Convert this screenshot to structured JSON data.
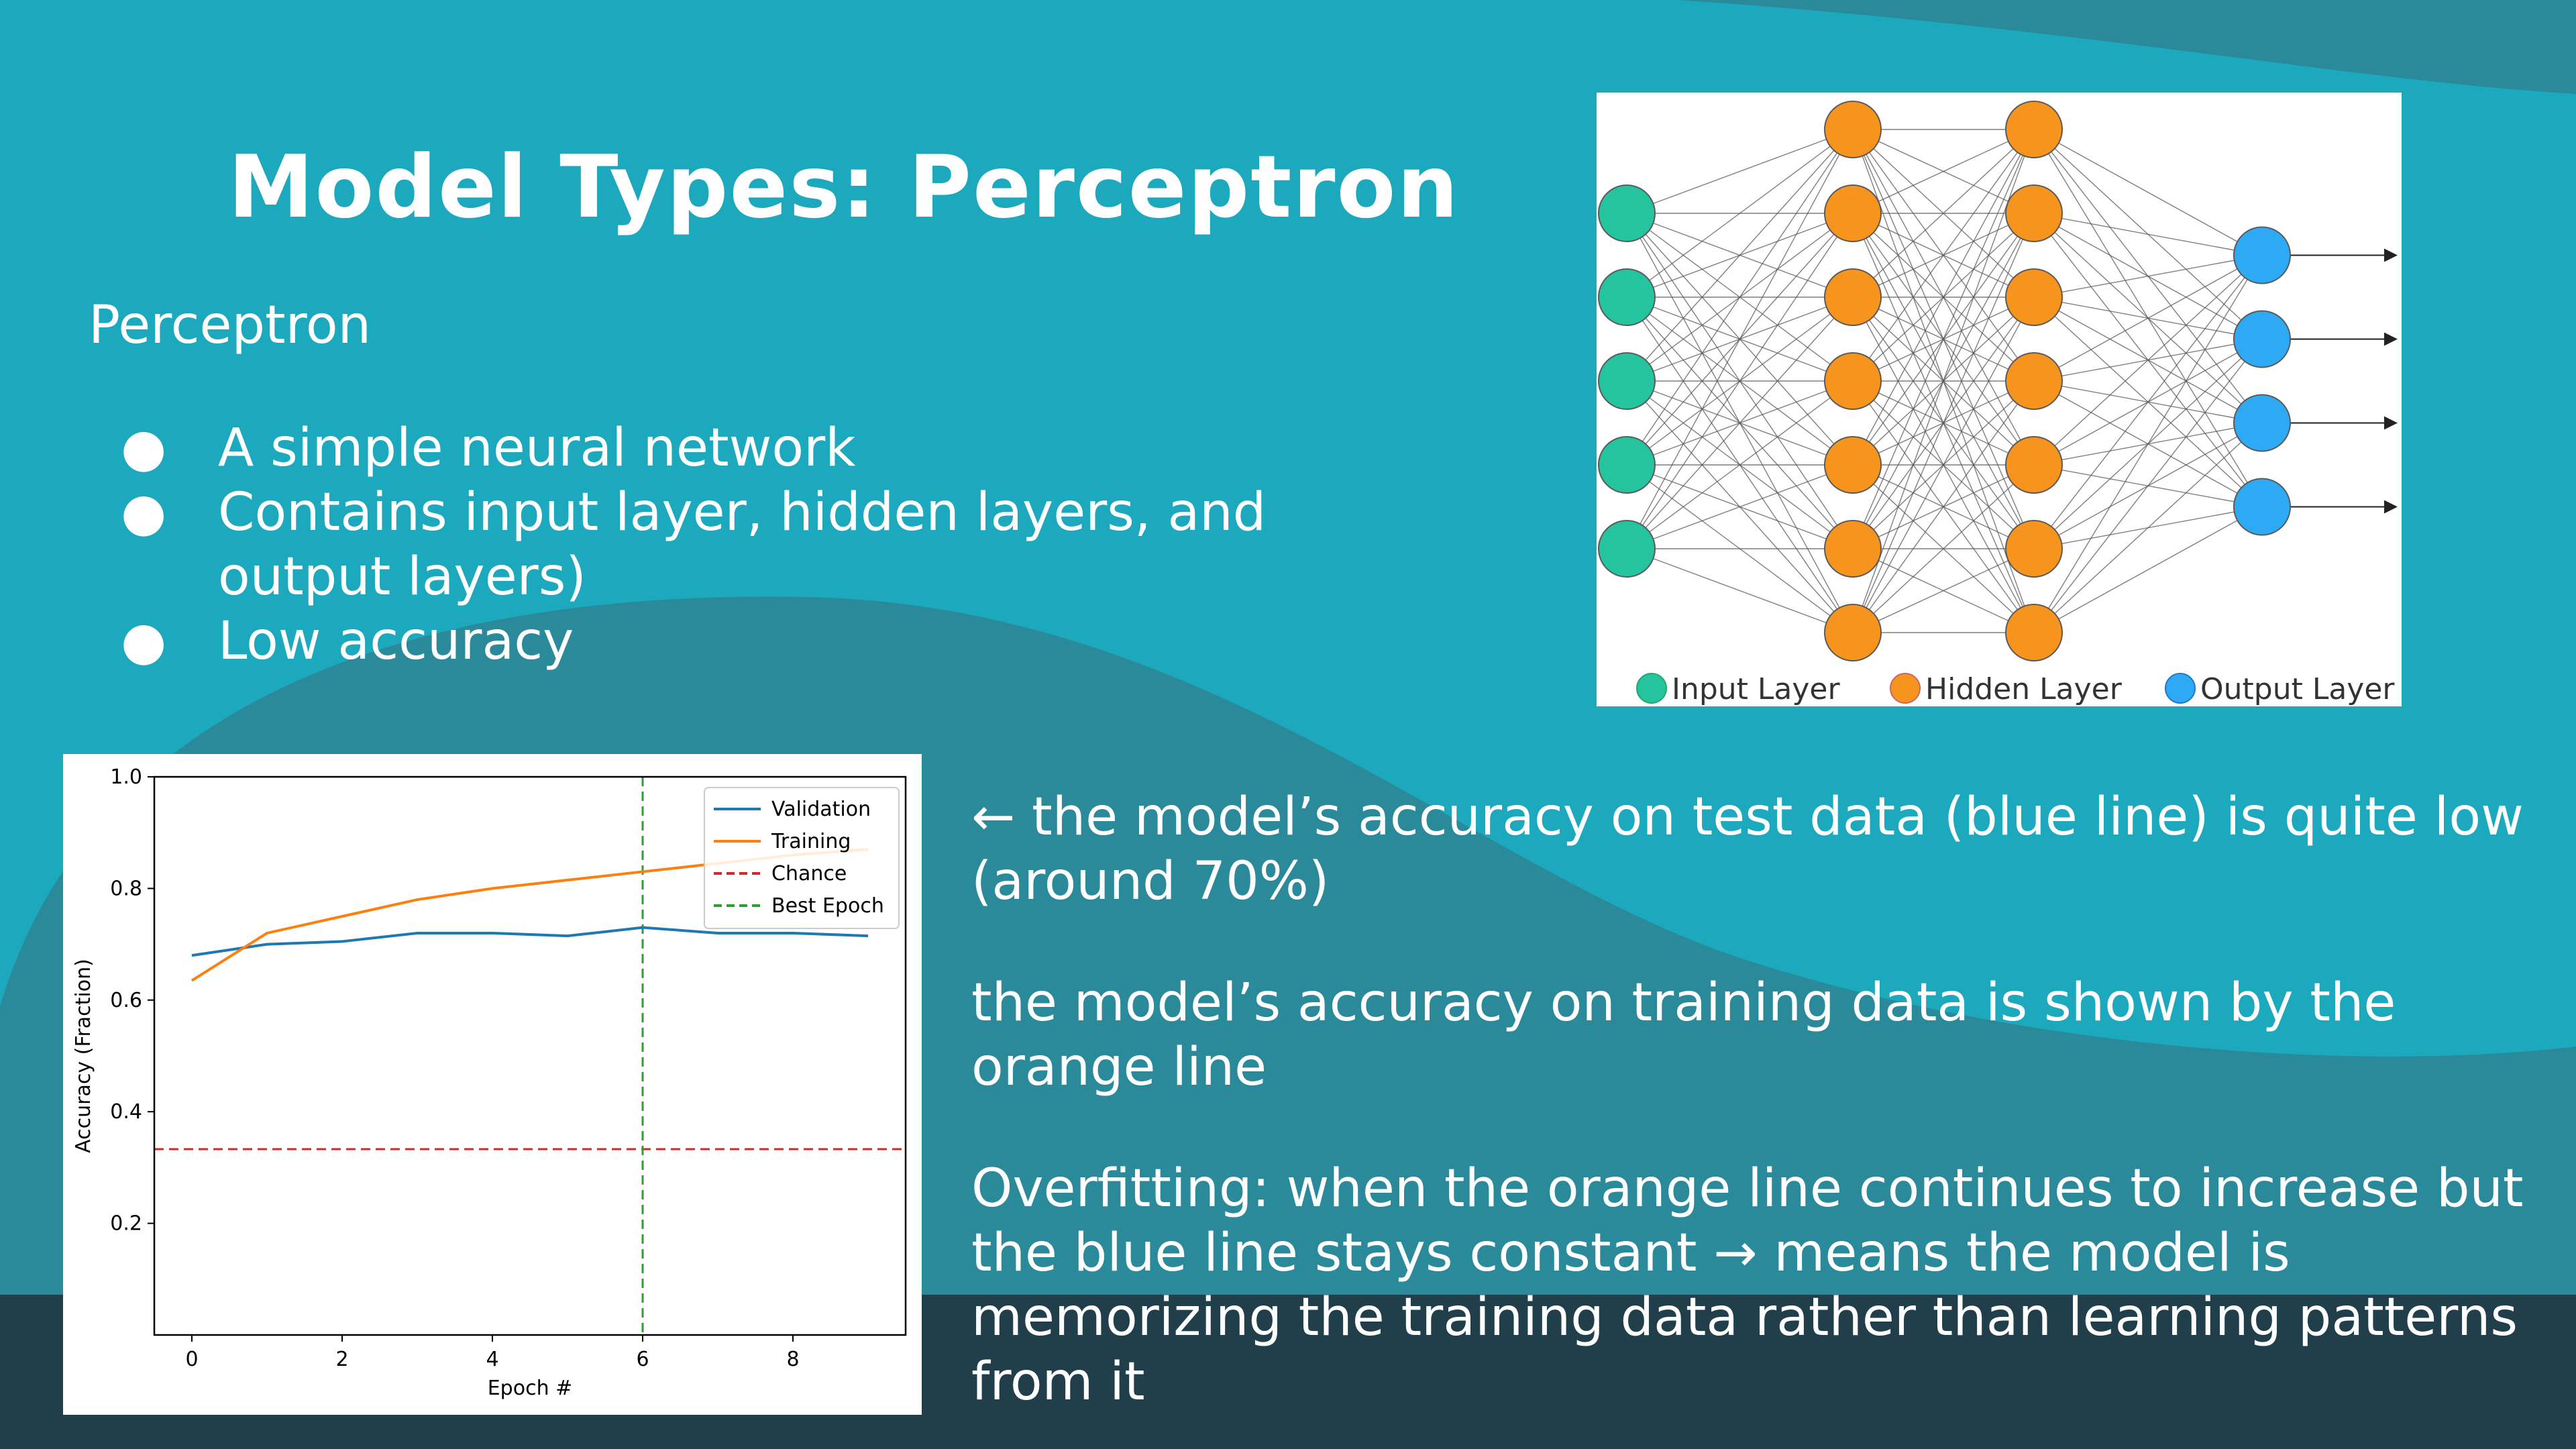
{
  "slide": {
    "title": "Model Types: Perceptron",
    "subtitle": "Perceptron",
    "bullets": [
      "A simple neural network",
      "Contains input layer, hidden layers, and output layers)",
      "Low accuracy"
    ],
    "bullet_glyph": "●",
    "notes": [
      "← the model’s accuracy on test data (blue line) is quite low (around 70%)",
      "the model’s accuracy on training data is shown by the orange line",
      "Overfitting: when the orange line continues to increase but the blue line stays constant → means the model is memorizing the training data rather than learning patterns  from it"
    ],
    "colors": {
      "background": "#1da9bd",
      "wave_dark": "#2a8a9a",
      "footer": "#213f4b",
      "text": "#ffffff"
    }
  },
  "network": {
    "legend": [
      "Input Layer",
      "Hidden Layer",
      "Output Layer"
    ],
    "layers": [
      {
        "name": "Input Layer",
        "nodes": 5,
        "color": "#24c59e"
      },
      {
        "name": "Hidden Layer",
        "nodes": 7,
        "color": "#f7941d"
      },
      {
        "name": "Hidden Layer",
        "nodes": 7,
        "color": "#f7941d"
      },
      {
        "name": "Output Layer",
        "nodes": 4,
        "color": "#2eaaf5"
      }
    ]
  },
  "chart_data": {
    "type": "line",
    "xlabel": "Epoch #",
    "ylabel": "Accuracy (Fraction)",
    "xlim": [
      -0.5,
      9.5
    ],
    "ylim": [
      0.0,
      1.0
    ],
    "xticks": [
      0,
      2,
      4,
      6,
      8
    ],
    "yticks": [
      0.2,
      0.4,
      0.6,
      0.8,
      1.0
    ],
    "grid": false,
    "legend_position": "top-right",
    "x": [
      0,
      1,
      2,
      3,
      4,
      5,
      6,
      7,
      8,
      9
    ],
    "series": [
      {
        "name": "Validation",
        "color": "#1f77b4",
        "values": [
          0.68,
          0.7,
          0.705,
          0.72,
          0.72,
          0.715,
          0.73,
          0.72,
          0.72,
          0.715
        ]
      },
      {
        "name": "Training",
        "color": "#ff7f0e",
        "values": [
          0.635,
          0.72,
          0.75,
          0.78,
          0.8,
          0.815,
          0.83,
          0.845,
          0.86,
          0.87
        ]
      }
    ],
    "hlines": [
      {
        "name": "Chance",
        "y": 0.333,
        "color": "#d62728",
        "style": "dashed"
      }
    ],
    "vlines": [
      {
        "name": "Best Epoch",
        "x": 6,
        "color": "#2ca02c",
        "style": "dashed"
      }
    ]
  }
}
